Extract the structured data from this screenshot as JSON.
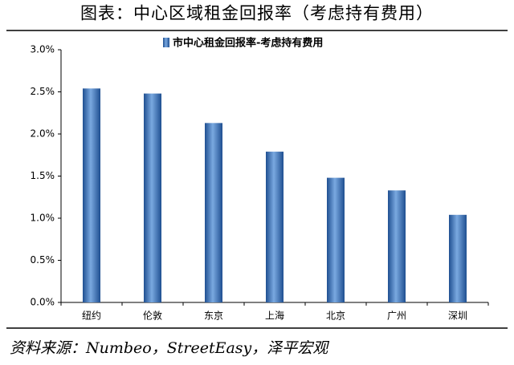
{
  "chart_data": {
    "type": "bar",
    "title": "图表：中心区域租金回报率（考虑持有费用）",
    "source": "资料来源：Numbeo，StreetEasy，泽平宏观",
    "categories": [
      "纽约",
      "伦敦",
      "东京",
      "上海",
      "北京",
      "广州",
      "深圳"
    ],
    "series": [
      {
        "name": "市中心租金回报率-考虑持有费用",
        "color": "#3b73bd",
        "values": [
          2.54,
          2.48,
          2.13,
          1.79,
          1.48,
          1.33,
          1.04
        ]
      }
    ],
    "ylim": [
      0,
      3
    ],
    "yticks": [
      {
        "value": 0,
        "label": "0.0%"
      },
      {
        "value": 0.5,
        "label": "0.5%"
      },
      {
        "value": 1,
        "label": "1.0%"
      },
      {
        "value": 1.5,
        "label": "1.5%"
      },
      {
        "value": 2,
        "label": "2.0%"
      },
      {
        "value": 2.5,
        "label": "2.5%"
      },
      {
        "value": 3,
        "label": "3.0%"
      }
    ],
    "legend": "top"
  }
}
